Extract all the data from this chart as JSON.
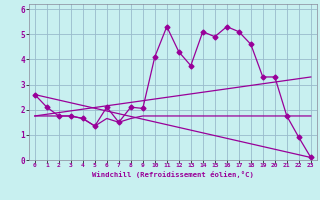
{
  "xlabel": "Windchill (Refroidissement éolien,°C)",
  "bg_color": "#c8f0f0",
  "line_color": "#990099",
  "grid_color": "#99bbcc",
  "xlim": [
    -0.5,
    23.5
  ],
  "ylim": [
    0,
    6.2
  ],
  "xticks": [
    0,
    1,
    2,
    3,
    4,
    5,
    6,
    7,
    8,
    9,
    10,
    11,
    12,
    13,
    14,
    15,
    16,
    17,
    18,
    19,
    20,
    21,
    22,
    23
  ],
  "yticks": [
    0,
    1,
    2,
    3,
    4,
    5,
    6
  ],
  "series1_x": [
    0,
    1,
    2,
    3,
    4,
    5,
    6,
    7,
    8,
    9,
    10,
    11,
    12,
    13,
    14,
    15,
    16,
    17,
    18,
    19,
    20,
    21,
    22,
    23
  ],
  "series1_y": [
    2.6,
    2.1,
    1.75,
    1.75,
    1.65,
    1.35,
    2.1,
    1.5,
    2.1,
    2.05,
    4.1,
    5.3,
    4.3,
    3.75,
    5.1,
    4.9,
    5.3,
    5.1,
    4.6,
    3.3,
    3.3,
    1.75,
    0.9,
    0.1
  ],
  "series2_x": [
    0,
    23
  ],
  "series2_y": [
    2.6,
    0.1
  ],
  "series3_x": [
    0,
    23
  ],
  "series3_y": [
    1.75,
    3.3
  ],
  "series4_x": [
    0,
    1,
    2,
    3,
    4,
    5,
    6,
    7,
    8,
    9,
    10,
    11,
    12,
    13,
    14,
    15,
    16,
    17,
    18,
    19,
    20,
    21,
    22,
    23
  ],
  "series4_y": [
    1.75,
    1.75,
    1.75,
    1.75,
    1.65,
    1.35,
    1.65,
    1.5,
    1.65,
    1.75,
    1.75,
    1.75,
    1.75,
    1.75,
    1.75,
    1.75,
    1.75,
    1.75,
    1.75,
    1.75,
    1.75,
    1.75,
    1.75,
    1.75
  ]
}
